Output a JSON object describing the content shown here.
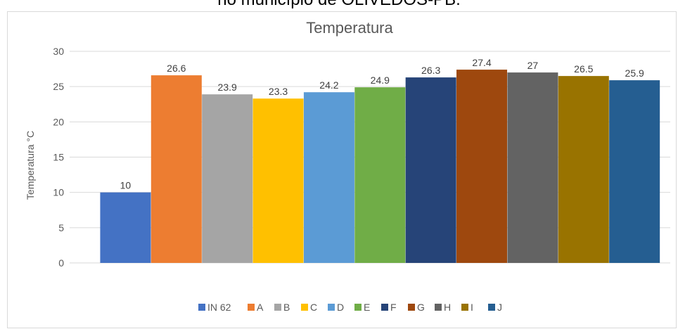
{
  "header": {
    "caption": "no município de OLIVEDOS-PB."
  },
  "chart_data": {
    "type": "bar",
    "title": "Temperatura",
    "xlabel": "",
    "ylabel": "Temperatura °C",
    "ylim": [
      0,
      30
    ],
    "yticks": [
      0,
      5,
      10,
      15,
      20,
      25,
      30
    ],
    "grid": true,
    "legend_position": "bottom",
    "categories": [
      "IN 62",
      "A",
      "B",
      "C",
      "D",
      "E",
      "F",
      "G",
      "H",
      "I",
      "J"
    ],
    "values": [
      10,
      26.6,
      23.9,
      23.3,
      24.2,
      24.9,
      26.3,
      27.4,
      27,
      26.5,
      25.9
    ],
    "colors": [
      "#4472c4",
      "#ed7d31",
      "#a5a5a5",
      "#ffc000",
      "#5b9bd5",
      "#70ad47",
      "#264478",
      "#9e480e",
      "#636363",
      "#997300",
      "#255e91"
    ]
  }
}
